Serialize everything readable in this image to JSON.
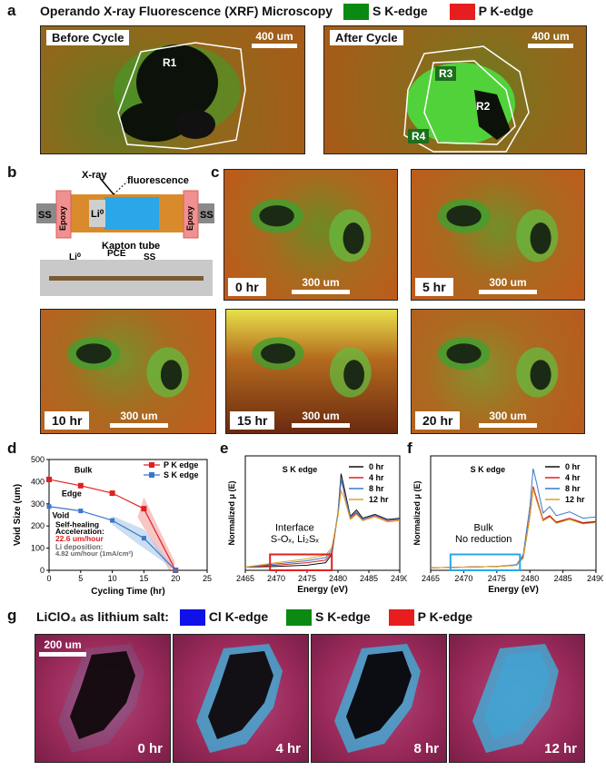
{
  "panel_a": {
    "letter": "a",
    "title": "Operando X-ray Fluorescence (XRF) Microscopy",
    "legend": [
      {
        "label": "S K-edge",
        "color": "#0a8a12"
      },
      {
        "label": "P K-edge",
        "color": "#e81d1d"
      }
    ],
    "left": {
      "tag": "Before Cycle",
      "scalebar": "400 um",
      "regions": [
        "R1"
      ]
    },
    "right": {
      "tag": "After Cycle",
      "scalebar": "400 um",
      "regions": [
        "R3",
        "R2",
        "R4"
      ]
    }
  },
  "panel_b": {
    "letter": "b",
    "schematic": {
      "xray": "X-ray",
      "fluorescence": "fluorescence",
      "ss_left": "SS",
      "ss_right": "SS",
      "epoxy": "Epoxy",
      "li": "Li⁰",
      "tube": "Kapton tube"
    },
    "photo": {
      "li": "Li⁰",
      "pce": "PCE",
      "ss": "SS"
    }
  },
  "panel_c": {
    "letter": "c",
    "frames": [
      {
        "time": "0 hr",
        "scalebar": "300 um"
      },
      {
        "time": "5 hr",
        "scalebar": "300 um"
      },
      {
        "time": "10 hr",
        "scalebar": "300 um"
      },
      {
        "time": "15 hr",
        "scalebar": "300 um"
      },
      {
        "time": "20 hr",
        "scalebar": "300 um"
      }
    ]
  },
  "panel_d": {
    "letter": "d",
    "annotations": {
      "bulk": "Bulk",
      "edge": "Edge",
      "void": "Void",
      "heal1": "Self-healing",
      "heal2": "Acceleration:",
      "heal_rate": "22.6 um/hour",
      "li_dep": "Li deposition:",
      "li_rate": "4.82 um/hour (1mA/cm²)"
    }
  },
  "panel_e": {
    "letter": "e",
    "edge_label": "S K edge",
    "box_line1": "Interface",
    "box_line2": "S-Oₓ, Li₂Sₓ"
  },
  "panel_f": {
    "letter": "f",
    "edge_label": "S K edge",
    "box_line1": "Bulk",
    "box_line2": "No reduction"
  },
  "panel_g": {
    "letter": "g",
    "title": "LiClO₄ as lithium salt:",
    "legend": [
      {
        "label": "Cl K-edge",
        "color": "#1010e8"
      },
      {
        "label": "S K-edge",
        "color": "#0a8a12"
      },
      {
        "label": "P K-edge",
        "color": "#e81d1d"
      }
    ],
    "scalebar": "200 um",
    "frames": [
      "0 hr",
      "4 hr",
      "8 hr",
      "12 hr"
    ]
  },
  "chart_data": [
    {
      "type": "line",
      "title": "",
      "xlabel": "Cycling Time (hr)",
      "ylabel": "Void Size (um)",
      "xlim": [
        0,
        25
      ],
      "ylim": [
        0,
        500
      ],
      "xticks": [
        "0",
        "5",
        "10",
        "15",
        "20",
        "25"
      ],
      "yticks": [
        "0",
        "100",
        "200",
        "300",
        "400",
        "500"
      ],
      "series": [
        {
          "name": "P K edge",
          "color": "#e02020",
          "x": [
            0,
            5,
            10,
            15,
            20
          ],
          "y": [
            410,
            382,
            348,
            278,
            0
          ]
        },
        {
          "name": "S K edge",
          "color": "#3a78c8",
          "x": [
            0,
            5,
            10,
            15,
            20
          ],
          "y": [
            288,
            268,
            225,
            145,
            0
          ]
        }
      ]
    },
    {
      "type": "line",
      "xlabel": "Energy (eV)",
      "ylabel": "Normalized μ (E)",
      "xlim": [
        2465,
        2490
      ],
      "xticks": [
        "2465",
        "2470",
        "2475",
        "2480",
        "2485",
        "2490"
      ],
      "ylim": [
        0,
        1.8
      ],
      "series": [
        {
          "name": "0 hr",
          "color": "#111111",
          "x": [
            2465,
            2470,
            2475,
            2478,
            2479,
            2480,
            2480.5,
            2481,
            2482,
            2483,
            2484,
            2486,
            2488,
            2490
          ],
          "y": [
            0.05,
            0.06,
            0.08,
            0.12,
            0.25,
            0.9,
            1.52,
            1.3,
            0.85,
            0.95,
            0.82,
            0.88,
            0.8,
            0.82
          ]
        },
        {
          "name": "4 hr",
          "color": "#e02020",
          "x": [
            2465,
            2470,
            2475,
            2478,
            2479,
            2480,
            2480.5,
            2481,
            2482,
            2483,
            2484,
            2486,
            2488,
            2490
          ],
          "y": [
            0.05,
            0.08,
            0.12,
            0.16,
            0.28,
            0.88,
            1.42,
            1.25,
            0.82,
            0.9,
            0.8,
            0.86,
            0.78,
            0.8
          ]
        },
        {
          "name": "8 hr",
          "color": "#3a78c8",
          "x": [
            2465,
            2470,
            2475,
            2478,
            2479,
            2480,
            2480.5,
            2481,
            2482,
            2483,
            2484,
            2486,
            2488,
            2490
          ],
          "y": [
            0.05,
            0.1,
            0.15,
            0.2,
            0.32,
            0.9,
            1.45,
            1.22,
            0.84,
            0.92,
            0.8,
            0.87,
            0.79,
            0.81
          ]
        },
        {
          "name": "12 hr",
          "color": "#e0a020",
          "x": [
            2465,
            2470,
            2475,
            2478,
            2479,
            2480,
            2480.5,
            2481,
            2482,
            2483,
            2484,
            2486,
            2488,
            2490
          ],
          "y": [
            0.05,
            0.12,
            0.18,
            0.24,
            0.36,
            0.85,
            1.25,
            1.15,
            0.8,
            0.88,
            0.78,
            0.84,
            0.76,
            0.78
          ]
        }
      ]
    },
    {
      "type": "line",
      "xlabel": "Energy (eV)",
      "ylabel": "Normalized μ (E)",
      "xlim": [
        2465,
        2490
      ],
      "xticks": [
        "2465",
        "2470",
        "2475",
        "2480",
        "2485",
        "2490"
      ],
      "ylim": [
        0,
        1.8
      ],
      "series": [
        {
          "name": "0 hr",
          "color": "#111111",
          "x": [
            2465,
            2470,
            2475,
            2478,
            2479,
            2480,
            2480.5,
            2481,
            2482,
            2483,
            2484,
            2486,
            2488,
            2490
          ],
          "y": [
            0.04,
            0.05,
            0.06,
            0.08,
            0.2,
            0.85,
            1.3,
            1.12,
            0.78,
            0.85,
            0.75,
            0.8,
            0.74,
            0.76
          ]
        },
        {
          "name": "4 hr",
          "color": "#e02020",
          "x": [
            2465,
            2470,
            2475,
            2478,
            2479,
            2480,
            2480.5,
            2481,
            2482,
            2483,
            2484,
            2486,
            2488,
            2490
          ],
          "y": [
            0.04,
            0.05,
            0.06,
            0.08,
            0.22,
            0.86,
            1.32,
            1.14,
            0.8,
            0.86,
            0.76,
            0.82,
            0.75,
            0.77
          ]
        },
        {
          "name": "8 hr",
          "color": "#3a78c8",
          "x": [
            2465,
            2470,
            2475,
            2478,
            2479,
            2480,
            2480.5,
            2481,
            2482,
            2483,
            2484,
            2486,
            2488,
            2490
          ],
          "y": [
            0.04,
            0.05,
            0.06,
            0.09,
            0.25,
            1.0,
            1.6,
            1.38,
            0.9,
            1.0,
            0.86,
            0.92,
            0.82,
            0.84
          ]
        },
        {
          "name": "12 hr",
          "color": "#e0a020",
          "x": [
            2465,
            2470,
            2475,
            2478,
            2479,
            2480,
            2480.5,
            2481,
            2482,
            2483,
            2484,
            2486,
            2488,
            2490
          ],
          "y": [
            0.04,
            0.05,
            0.06,
            0.08,
            0.21,
            0.84,
            1.28,
            1.1,
            0.78,
            0.84,
            0.74,
            0.8,
            0.73,
            0.75
          ]
        }
      ]
    }
  ]
}
